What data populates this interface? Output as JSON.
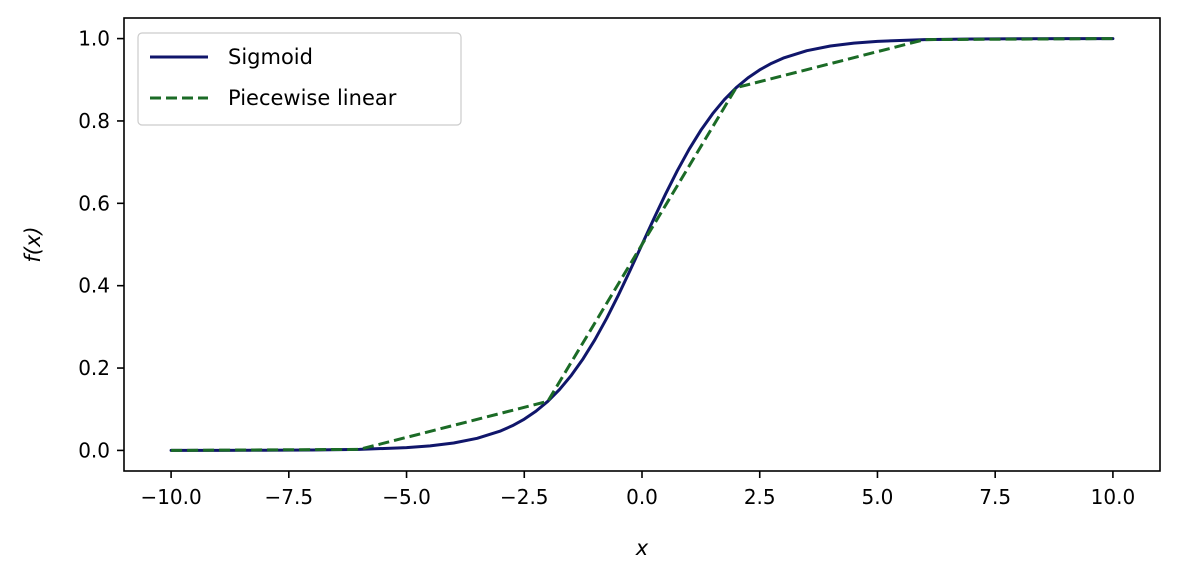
{
  "chart_data": {
    "type": "line",
    "title": "",
    "xlabel": "x",
    "ylabel": "f(x)",
    "xlim": [
      -11.0,
      11.0
    ],
    "ylim": [
      -0.05,
      1.05
    ],
    "xticks": [
      -10.0,
      -7.5,
      -5.0,
      -2.5,
      0.0,
      2.5,
      5.0,
      7.5,
      10.0
    ],
    "xtick_labels": [
      "−10.0",
      "−7.5",
      "−5.0",
      "−2.5",
      "0.0",
      "2.5",
      "5.0",
      "7.5",
      "10.0"
    ],
    "yticks": [
      0.0,
      0.2,
      0.4,
      0.6,
      0.8,
      1.0
    ],
    "ytick_labels": [
      "0.0",
      "0.2",
      "0.4",
      "0.6",
      "0.8",
      "1.0"
    ],
    "grid": false,
    "legend_position": "top-left",
    "series": [
      {
        "name": "Sigmoid",
        "style": "solid",
        "color": "#10166b",
        "x": [
          -10,
          -9,
          -8,
          -7,
          -6,
          -5,
          -4.5,
          -4,
          -3.5,
          -3,
          -2.75,
          -2.5,
          -2.25,
          -2,
          -1.75,
          -1.5,
          -1.25,
          -1,
          -0.75,
          -0.5,
          -0.25,
          0,
          0.25,
          0.5,
          0.75,
          1,
          1.25,
          1.5,
          1.75,
          2,
          2.25,
          2.5,
          2.75,
          3,
          3.5,
          4,
          4.5,
          5,
          6,
          7,
          8,
          9,
          10
        ],
        "y": [
          0.0,
          0.0001,
          0.0003,
          0.0009,
          0.0025,
          0.0067,
          0.011,
          0.018,
          0.0293,
          0.0474,
          0.0601,
          0.0759,
          0.0953,
          0.1192,
          0.148,
          0.1824,
          0.2227,
          0.2689,
          0.3208,
          0.3775,
          0.4378,
          0.5,
          0.5622,
          0.6225,
          0.6792,
          0.7311,
          0.7773,
          0.8176,
          0.852,
          0.8808,
          0.9047,
          0.9241,
          0.9399,
          0.9526,
          0.9707,
          0.982,
          0.989,
          0.9933,
          0.9975,
          0.9991,
          0.9997,
          0.9999,
          1.0
        ]
      },
      {
        "name": "Piecewise linear",
        "style": "dashed",
        "color": "#1b6b26",
        "x": [
          -10,
          -6,
          -2,
          2,
          6,
          10
        ],
        "y": [
          0.0,
          0.0025,
          0.1192,
          0.8808,
          0.9975,
          1.0
        ]
      }
    ]
  }
}
